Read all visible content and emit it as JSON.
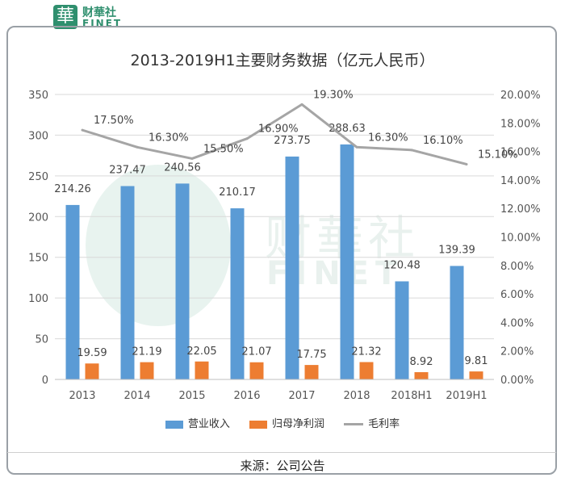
{
  "brand": {
    "cn": "财華社",
    "en": "FINET",
    "logo_char": "華"
  },
  "title": "2013-2019H1主要财务数据（亿元人民币）",
  "source": "来源：公司公告",
  "colors": {
    "revenue": "#5b9bd5",
    "profit": "#ed7d31",
    "margin": "#a5a5a5"
  },
  "chart_data": {
    "type": "bar",
    "categories": [
      "2013",
      "2014",
      "2015",
      "2016",
      "2017",
      "2018",
      "2018H1",
      "2019H1"
    ],
    "series": [
      {
        "name": "营业收入",
        "type": "bar",
        "axis": "left",
        "values": [
          214.26,
          237.47,
          240.56,
          210.17,
          273.75,
          288.63,
          120.48,
          139.39
        ],
        "labels": [
          "214.26",
          "237.47",
          "240.56",
          "210.17",
          "273.75",
          "288.63",
          "120.48",
          "139.39"
        ]
      },
      {
        "name": "归母净利润",
        "type": "bar",
        "axis": "left",
        "values": [
          19.59,
          21.19,
          22.05,
          21.07,
          17.75,
          21.32,
          8.92,
          9.81
        ],
        "labels": [
          "19.59",
          "21.19",
          "22.05",
          "21.07",
          "17.75",
          "21.32",
          "8.92",
          "9.81"
        ]
      },
      {
        "name": "毛利率",
        "type": "line",
        "axis": "right",
        "values": [
          17.5,
          16.3,
          15.5,
          16.9,
          19.3,
          16.3,
          16.1,
          15.1
        ],
        "labels": [
          "17.50%",
          "16.30%",
          "15.50%",
          "16.90%",
          "19.30%",
          "16.30%",
          "16.10%",
          "15.10%"
        ]
      }
    ],
    "y_left": {
      "ylim": [
        0,
        350
      ],
      "ticks": [
        "0",
        "50",
        "100",
        "150",
        "200",
        "250",
        "300",
        "350"
      ]
    },
    "y_right": {
      "ylim": [
        0,
        20
      ],
      "ticks": [
        "0.00%",
        "2.00%",
        "4.00%",
        "6.00%",
        "8.00%",
        "10.00%",
        "12.00%",
        "14.00%",
        "16.00%",
        "18.00%",
        "20.00%"
      ]
    },
    "grid": true,
    "legend_position": "bottom"
  }
}
